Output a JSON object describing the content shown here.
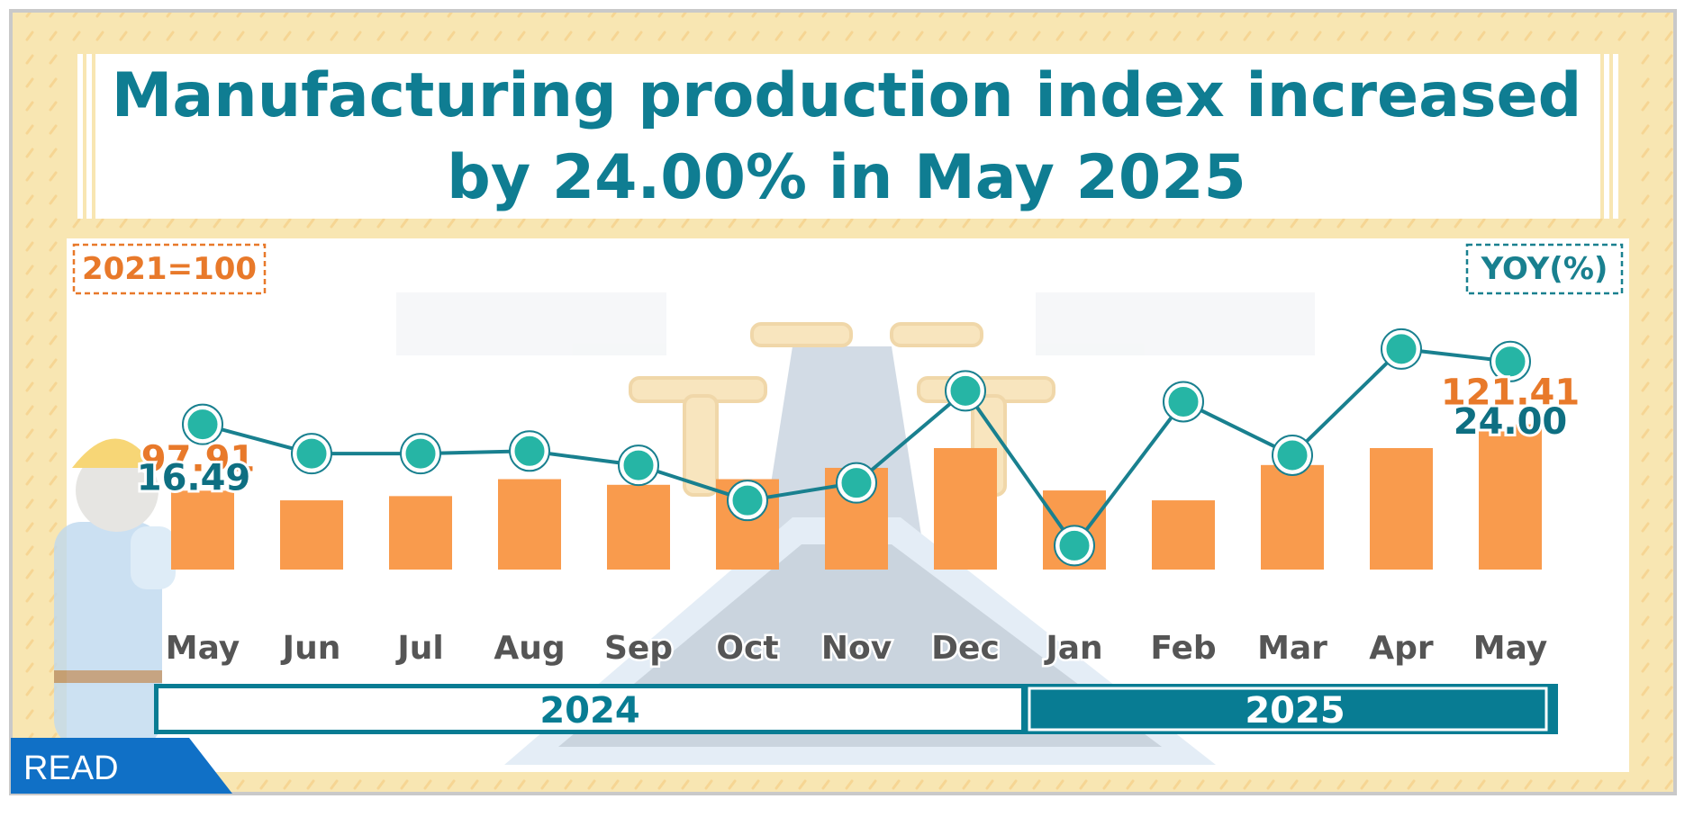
{
  "title_line1": "Manufacturing production index increased",
  "title_line2": "by 24.00% in May 2025",
  "left_axis_tag": "2021=100",
  "right_axis_tag": "YOY(%)",
  "read_button": "READ",
  "years": [
    "2024",
    "2025"
  ],
  "colors": {
    "bar": "#F99B4D",
    "line": "#19808F",
    "marker": "#26B5A5",
    "title": "#0F7D92",
    "orange_text": "#E8792A",
    "band_2025": "#087C93",
    "frame": "#F8E3A8",
    "read_bg": "#1070C6"
  },
  "chart_data": {
    "type": "bar+line",
    "categories": [
      "May",
      "Jun",
      "Jul",
      "Aug",
      "Sep",
      "Oct",
      "Nov",
      "Dec",
      "Jan",
      "Feb",
      "Mar",
      "Apr",
      "May"
    ],
    "series": [
      {
        "name": "2021=100",
        "type": "bar",
        "values": [
          97.91,
          94.5,
          96.0,
          102.0,
          100.0,
          102.0,
          106.0,
          113.0,
          98.0,
          94.5,
          107.0,
          113.0,
          121.41
        ]
      },
      {
        "name": "YOY(%)",
        "type": "line",
        "values": [
          16.49,
          13.0,
          13.0,
          13.3,
          11.6,
          7.4,
          9.5,
          20.5,
          2.0,
          19.2,
          12.8,
          25.5,
          24.0
        ]
      }
    ],
    "data_labels": [
      {
        "series": "2021=100",
        "index": 0,
        "text": "97.91"
      },
      {
        "series": "2021=100",
        "index": 12,
        "text": "121.41"
      },
      {
        "series": "YOY(%)",
        "index": 0,
        "text": "16.49"
      },
      {
        "series": "YOY(%)",
        "index": 12,
        "text": "24.00"
      }
    ],
    "year_groups": [
      {
        "label": "2024",
        "from": 0,
        "to": 7
      },
      {
        "label": "2025",
        "from": 8,
        "to": 12
      }
    ]
  }
}
